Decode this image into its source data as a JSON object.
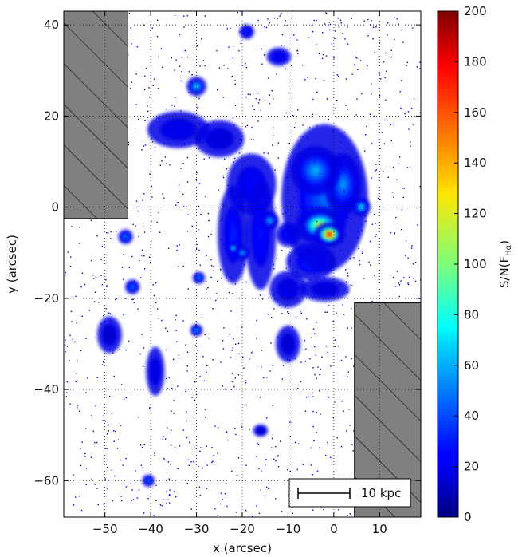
{
  "chart_data": {
    "type": "heatmap",
    "title": "",
    "xlabel": "x (arcsec)",
    "ylabel": "y (arcsec)",
    "xlim": [
      -59,
      19
    ],
    "ylim": [
      -68,
      43
    ],
    "xticks": [
      -50,
      -40,
      -30,
      -20,
      -10,
      0,
      10
    ],
    "yticks": [
      -60,
      -40,
      -20,
      0,
      20,
      40
    ],
    "xtick_labels": [
      "−50",
      "−40",
      "−30",
      "−20",
      "−10",
      "0",
      "10"
    ],
    "ytick_labels": [
      "−60",
      "−40",
      "−20",
      "0",
      "20",
      "40"
    ],
    "grid": true,
    "colorbar": {
      "label": "S/N(F",
      "label_sub": "Hα",
      "label_close": ")",
      "min": 0,
      "max": 200,
      "ticks": [
        0,
        20,
        40,
        60,
        80,
        100,
        120,
        140,
        160,
        180,
        200
      ],
      "tick_labels": [
        "0",
        "20",
        "40",
        "60",
        "80",
        "100",
        "120",
        "140",
        "160",
        "180",
        "200"
      ],
      "colormap": "jet"
    },
    "masked_regions": [
      {
        "x": [
          -59,
          -45
        ],
        "y": [
          -2.5,
          43
        ],
        "fill": "#808080"
      },
      {
        "x": [
          4.5,
          19
        ],
        "y": [
          -68,
          -21
        ],
        "fill": "#808080"
      }
    ],
    "scale_bar_label": "10 kpc",
    "emission_clumps": [
      {
        "x": -2,
        "y": 2,
        "sx": 7,
        "sy": 12,
        "value": 45
      },
      {
        "x": -3,
        "y": -4,
        "sx": 4,
        "sy": 3,
        "value": 120
      },
      {
        "x": -1,
        "y": -6,
        "sx": 2.5,
        "sy": 2,
        "value": 185
      },
      {
        "x": -4,
        "y": 8,
        "sx": 4,
        "sy": 4,
        "value": 60
      },
      {
        "x": 2,
        "y": 5,
        "sx": 3,
        "sy": 5,
        "value": 55
      },
      {
        "x": 6,
        "y": 0,
        "sx": 1.5,
        "sy": 1.5,
        "value": 75
      },
      {
        "x": -5,
        "y": -12,
        "sx": 4,
        "sy": 3,
        "value": 35
      },
      {
        "x": -10,
        "y": -18,
        "sx": 3,
        "sy": 3,
        "value": 20
      },
      {
        "x": -2,
        "y": -18,
        "sx": 4,
        "sy": 2,
        "value": 18
      },
      {
        "x": -22,
        "y": -6,
        "sx": 2.5,
        "sy": 8,
        "value": 30
      },
      {
        "x": -16,
        "y": -6,
        "sx": 2.5,
        "sy": 9,
        "value": 28
      },
      {
        "x": -14,
        "y": -3,
        "sx": 1.5,
        "sy": 1.5,
        "value": 60
      },
      {
        "x": -18,
        "y": 5,
        "sx": 4,
        "sy": 5,
        "value": 25
      },
      {
        "x": -30,
        "y": 26.5,
        "sx": 1.6,
        "sy": 1.6,
        "value": 70
      },
      {
        "x": -34,
        "y": 17,
        "sx": 5,
        "sy": 3,
        "value": 22
      },
      {
        "x": -25,
        "y": 15,
        "sx": 4,
        "sy": 3,
        "value": 18
      },
      {
        "x": -19,
        "y": 38.5,
        "sx": 1.2,
        "sy": 1.2,
        "value": 35
      },
      {
        "x": -12,
        "y": 33,
        "sx": 2,
        "sy": 1.5,
        "value": 22
      },
      {
        "x": -45.5,
        "y": -6.5,
        "sx": 1.2,
        "sy": 1.2,
        "value": 55
      },
      {
        "x": -44,
        "y": -17.5,
        "sx": 1.2,
        "sy": 1.2,
        "value": 50
      },
      {
        "x": -40.5,
        "y": -60,
        "sx": 1,
        "sy": 1,
        "value": 50
      },
      {
        "x": -30,
        "y": -27,
        "sx": 1,
        "sy": 1,
        "value": 60
      },
      {
        "x": -39,
        "y": -36,
        "sx": 1.5,
        "sy": 4,
        "value": 20
      },
      {
        "x": -29.5,
        "y": -15.5,
        "sx": 1,
        "sy": 1,
        "value": 55
      },
      {
        "x": -20,
        "y": -10,
        "sx": 1.2,
        "sy": 1.2,
        "value": 60
      },
      {
        "x": -22,
        "y": -9,
        "sx": 1,
        "sy": 1,
        "value": 70
      },
      {
        "x": -10,
        "y": -6,
        "sx": 2,
        "sy": 2,
        "value": 30
      },
      {
        "x": -10,
        "y": -30,
        "sx": 2,
        "sy": 3,
        "value": 15
      },
      {
        "x": -16,
        "y": -49,
        "sx": 1.2,
        "sy": 1,
        "value": 12
      },
      {
        "x": -49,
        "y": -28,
        "sx": 2,
        "sy": 3,
        "value": 14
      }
    ]
  }
}
